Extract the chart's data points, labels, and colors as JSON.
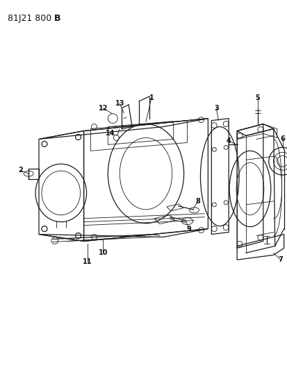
{
  "title": "81J21 800",
  "title_bold": "B",
  "bg": "#ffffff",
  "lc": "#1a1a1a",
  "lc2": "#444444",
  "label_fs": 7,
  "title_fs": 9
}
